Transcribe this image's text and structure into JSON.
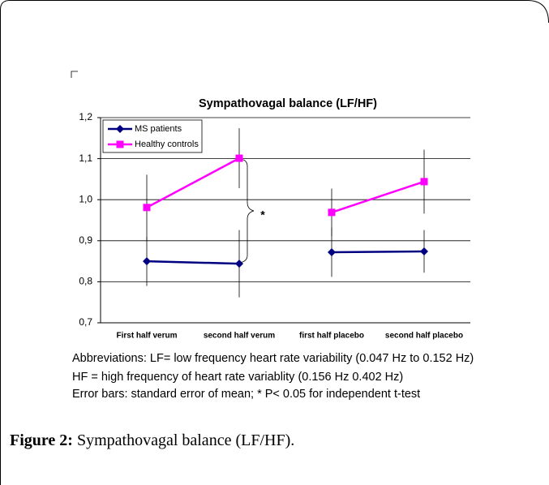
{
  "chart_data": {
    "type": "line",
    "title": "Sympathovagal balance (LF/HF)",
    "categories": [
      "First half verum",
      "second half verum",
      "first half placebo",
      "second half placebo"
    ],
    "series": [
      {
        "name": "MS patients",
        "color": "#000080",
        "marker": "diamond",
        "values": [
          0.85,
          0.844,
          0.872,
          0.874
        ],
        "errors": [
          0.06,
          0.082,
          0.06,
          0.052
        ]
      },
      {
        "name": "Healthy controls",
        "color": "#ff00ff",
        "marker": "square",
        "values": [
          0.981,
          1.101,
          0.969,
          1.044
        ],
        "errors": [
          0.08,
          0.073,
          0.058,
          0.078
        ]
      }
    ],
    "line_groups": [
      [
        0,
        1
      ],
      [
        2,
        3
      ]
    ],
    "ylim": [
      0.7,
      1.2
    ],
    "yticks": [
      {
        "value": 0.7,
        "label": "0,7"
      },
      {
        "value": 0.8,
        "label": "0,8"
      },
      {
        "value": 0.9,
        "label": "0,9"
      },
      {
        "value": 1.0,
        "label": "1,0"
      },
      {
        "value": 1.1,
        "label": "1,1"
      },
      {
        "value": 1.2,
        "label": "1,2"
      }
    ],
    "grid": true,
    "legend": "upper left",
    "annotations": [
      "*"
    ]
  },
  "notes": [
    "Abbreviations: LF= low frequency heart rate variability (0.047 Hz to 0.152 Hz)",
    "HF = high frequency of heart rate variablity (0.156 Hz 0.402 Hz)",
    "Error bars: standard error of mean; * P< 0.05 for independent t-test"
  ],
  "caption": {
    "label": "Figure 2:",
    "text": " Sympathovagal balance (LF/HF)."
  }
}
